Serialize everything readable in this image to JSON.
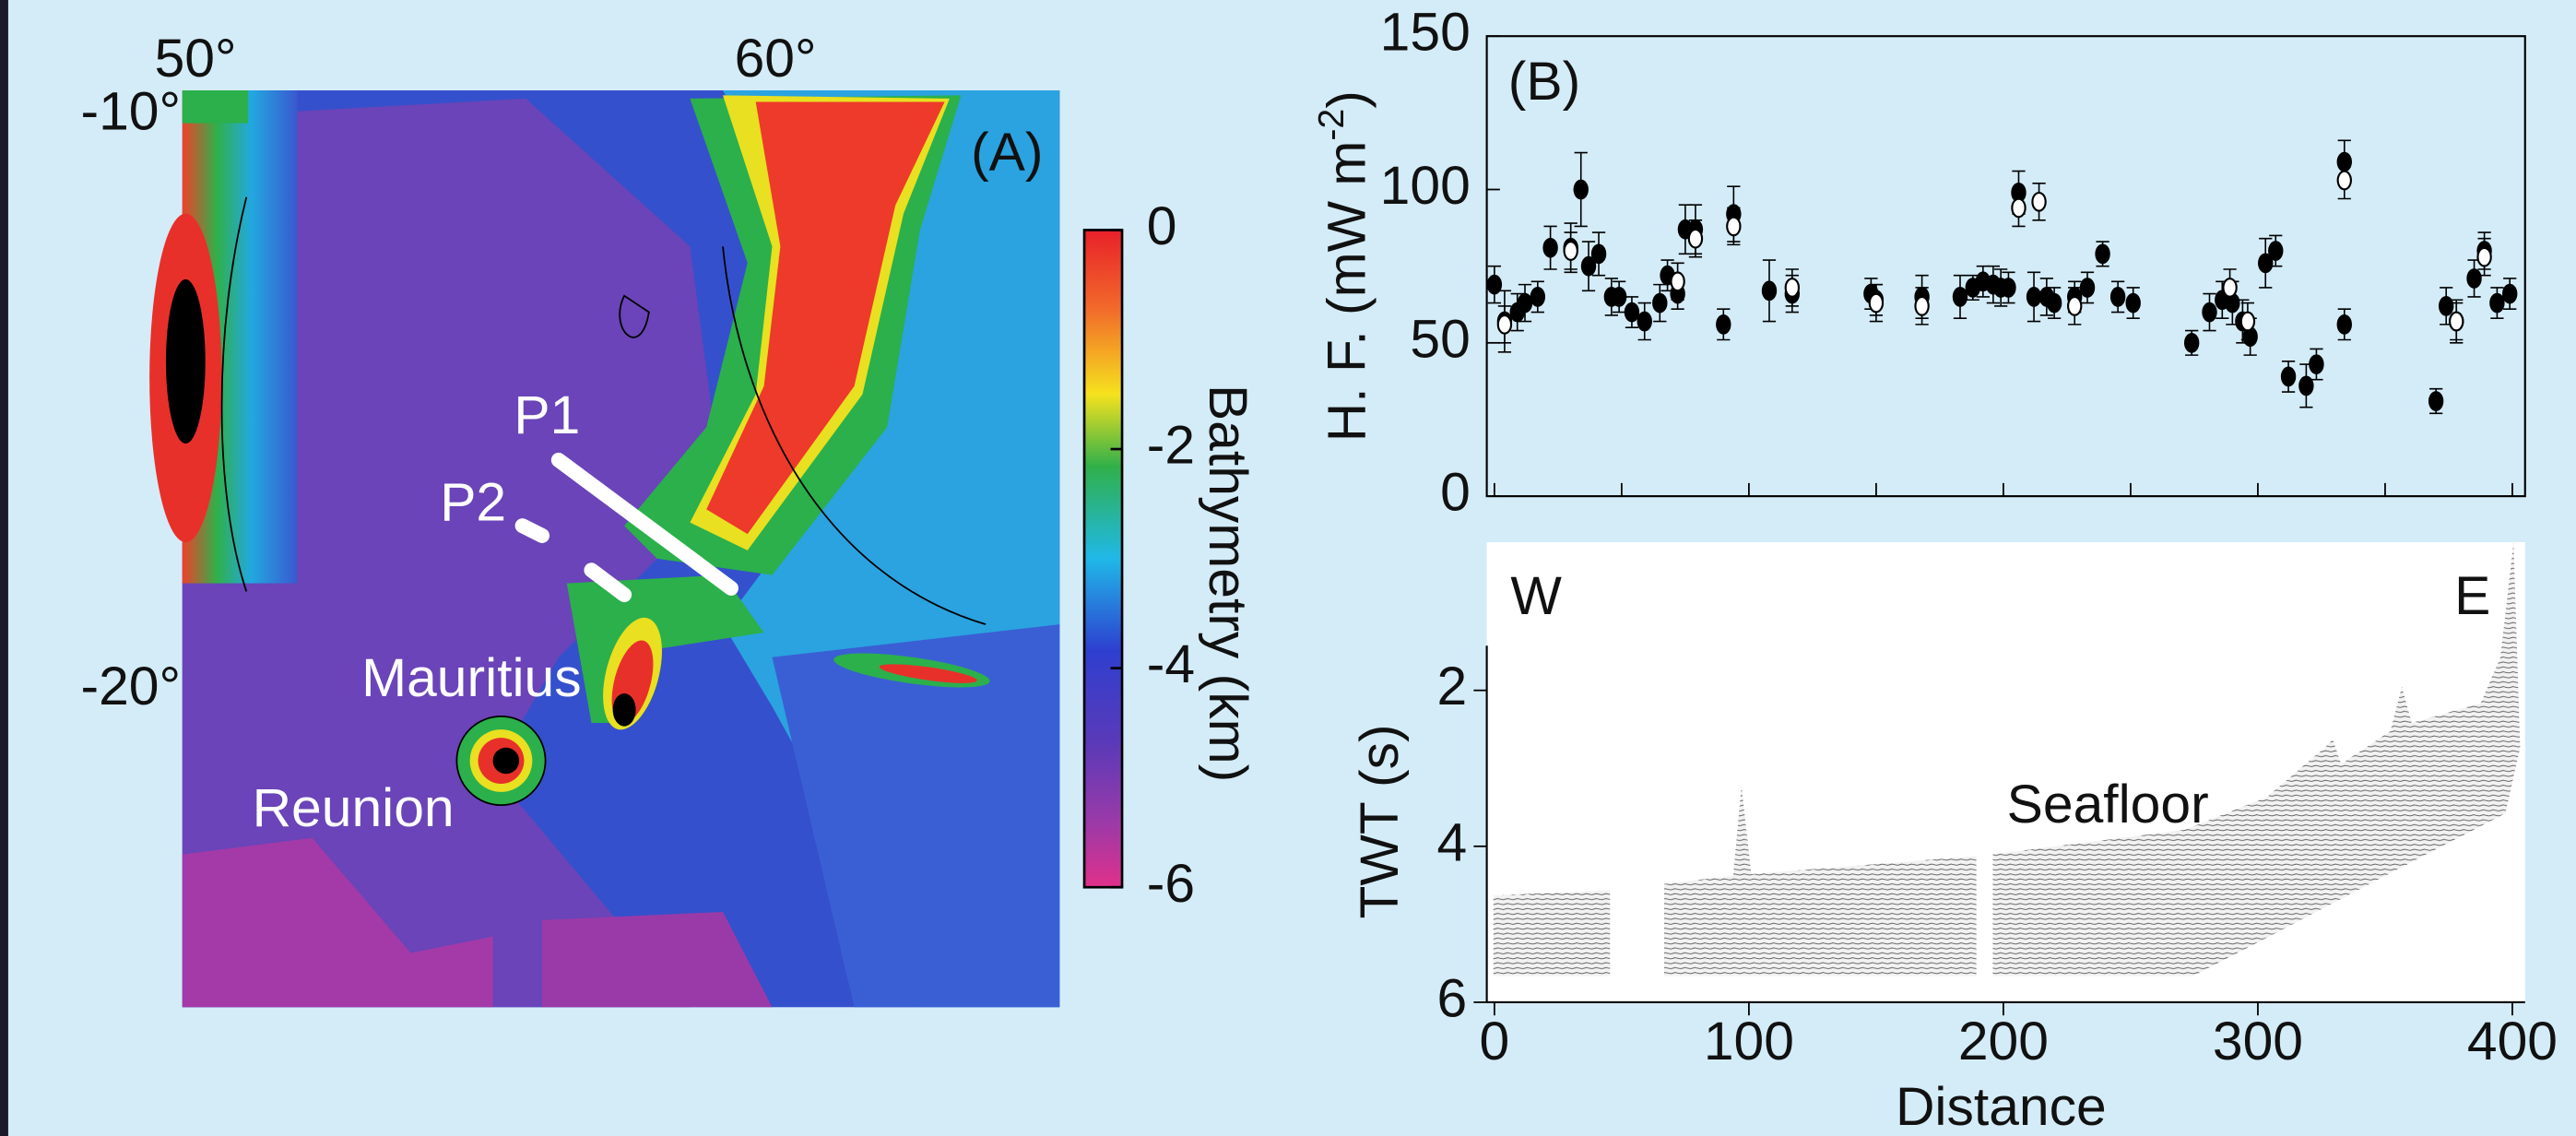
{
  "map": {
    "panel": "(A)",
    "lon": [
      "50°",
      "60°"
    ],
    "lat": [
      "-10°",
      "-20°"
    ],
    "profiles": [
      "P1",
      "P2"
    ],
    "islands": [
      "Mauritius",
      "Reunion"
    ],
    "colorbar": {
      "label": "Bathymetry (km)",
      "lim": [
        -6,
        0
      ],
      "ticks": [
        0,
        -2,
        -4,
        -6
      ]
    }
  },
  "chart_data": [
    {
      "type": "scatter",
      "label": "(B)",
      "ylabel": {
        "text": "H. F. (mW m",
        "sup": "-2",
        "end": ")"
      },
      "xlim": [
        -3,
        405
      ],
      "xticks": [
        0,
        50,
        100,
        150,
        200,
        250,
        300,
        350,
        400
      ],
      "ylim": [
        0,
        150
      ],
      "yticks": [
        0,
        50,
        100,
        150
      ],
      "series": [
        {
          "marker": "filled",
          "color": "#000000",
          "x": [
            0,
            4,
            9,
            12,
            17,
            22,
            30,
            34,
            37,
            41,
            46,
            49,
            54,
            59,
            65,
            68,
            72,
            75,
            79,
            90,
            94,
            108,
            117,
            148,
            150,
            168,
            183,
            188,
            192,
            196,
            199,
            202,
            206,
            212,
            217,
            220,
            228,
            233,
            239,
            245,
            251,
            274,
            281,
            286,
            290,
            294,
            297,
            303,
            307,
            312,
            319,
            323,
            334,
            334,
            370,
            374,
            378,
            385,
            389,
            394,
            399
          ],
          "values": [
            69,
            57,
            60,
            63,
            65,
            81,
            81,
            100,
            75,
            79,
            65,
            65,
            60,
            57,
            63,
            72,
            66,
            87,
            87,
            56,
            92,
            67,
            66,
            66,
            64,
            65,
            65,
            68,
            70,
            69,
            68,
            68,
            99,
            65,
            65,
            63,
            65,
            68,
            79,
            65,
            63,
            50,
            60,
            64,
            63,
            57,
            52,
            76,
            80,
            39,
            36,
            43,
            109,
            56,
            31,
            62,
            57,
            71,
            80,
            63,
            66
          ],
          "errors": [
            6,
            10,
            6,
            6,
            5,
            7,
            8,
            12,
            8,
            7,
            6,
            5,
            5,
            6,
            6,
            5,
            5,
            8,
            8,
            5,
            9,
            10,
            6,
            5,
            5,
            7,
            7,
            4,
            5,
            6,
            6,
            5,
            7,
            8,
            6,
            5,
            5,
            5,
            4,
            5,
            5,
            4,
            6,
            6,
            7,
            7,
            6,
            8,
            5,
            5,
            7,
            5,
            7,
            5,
            4,
            6,
            7,
            6,
            6,
            5,
            5
          ]
        },
        {
          "marker": "open",
          "color": "#000000",
          "x": [
            4,
            30,
            72,
            79,
            94,
            117,
            150,
            168,
            206,
            214,
            228,
            289,
            296,
            334,
            378,
            389
          ],
          "values": [
            56,
            80,
            70,
            84,
            88,
            68,
            63,
            62,
            94,
            96,
            62,
            68,
            57,
            103,
            57,
            78
          ],
          "errors": [
            6,
            6,
            6,
            6,
            6,
            6,
            6,
            6,
            6,
            6,
            6,
            6,
            6,
            6,
            6,
            6
          ]
        }
      ]
    },
    {
      "type": "seismic",
      "left_label": "W",
      "right_label": "E",
      "annotation": "Seafloor",
      "xlabel": "Distance",
      "ylabel": "TWT (s)",
      "xlim": [
        -3,
        405
      ],
      "xticks": [
        0,
        100,
        200,
        300,
        400
      ],
      "ylim": [
        0.1,
        6
      ],
      "yticks": [
        2,
        4,
        6
      ],
      "y_inverted": true
    }
  ]
}
